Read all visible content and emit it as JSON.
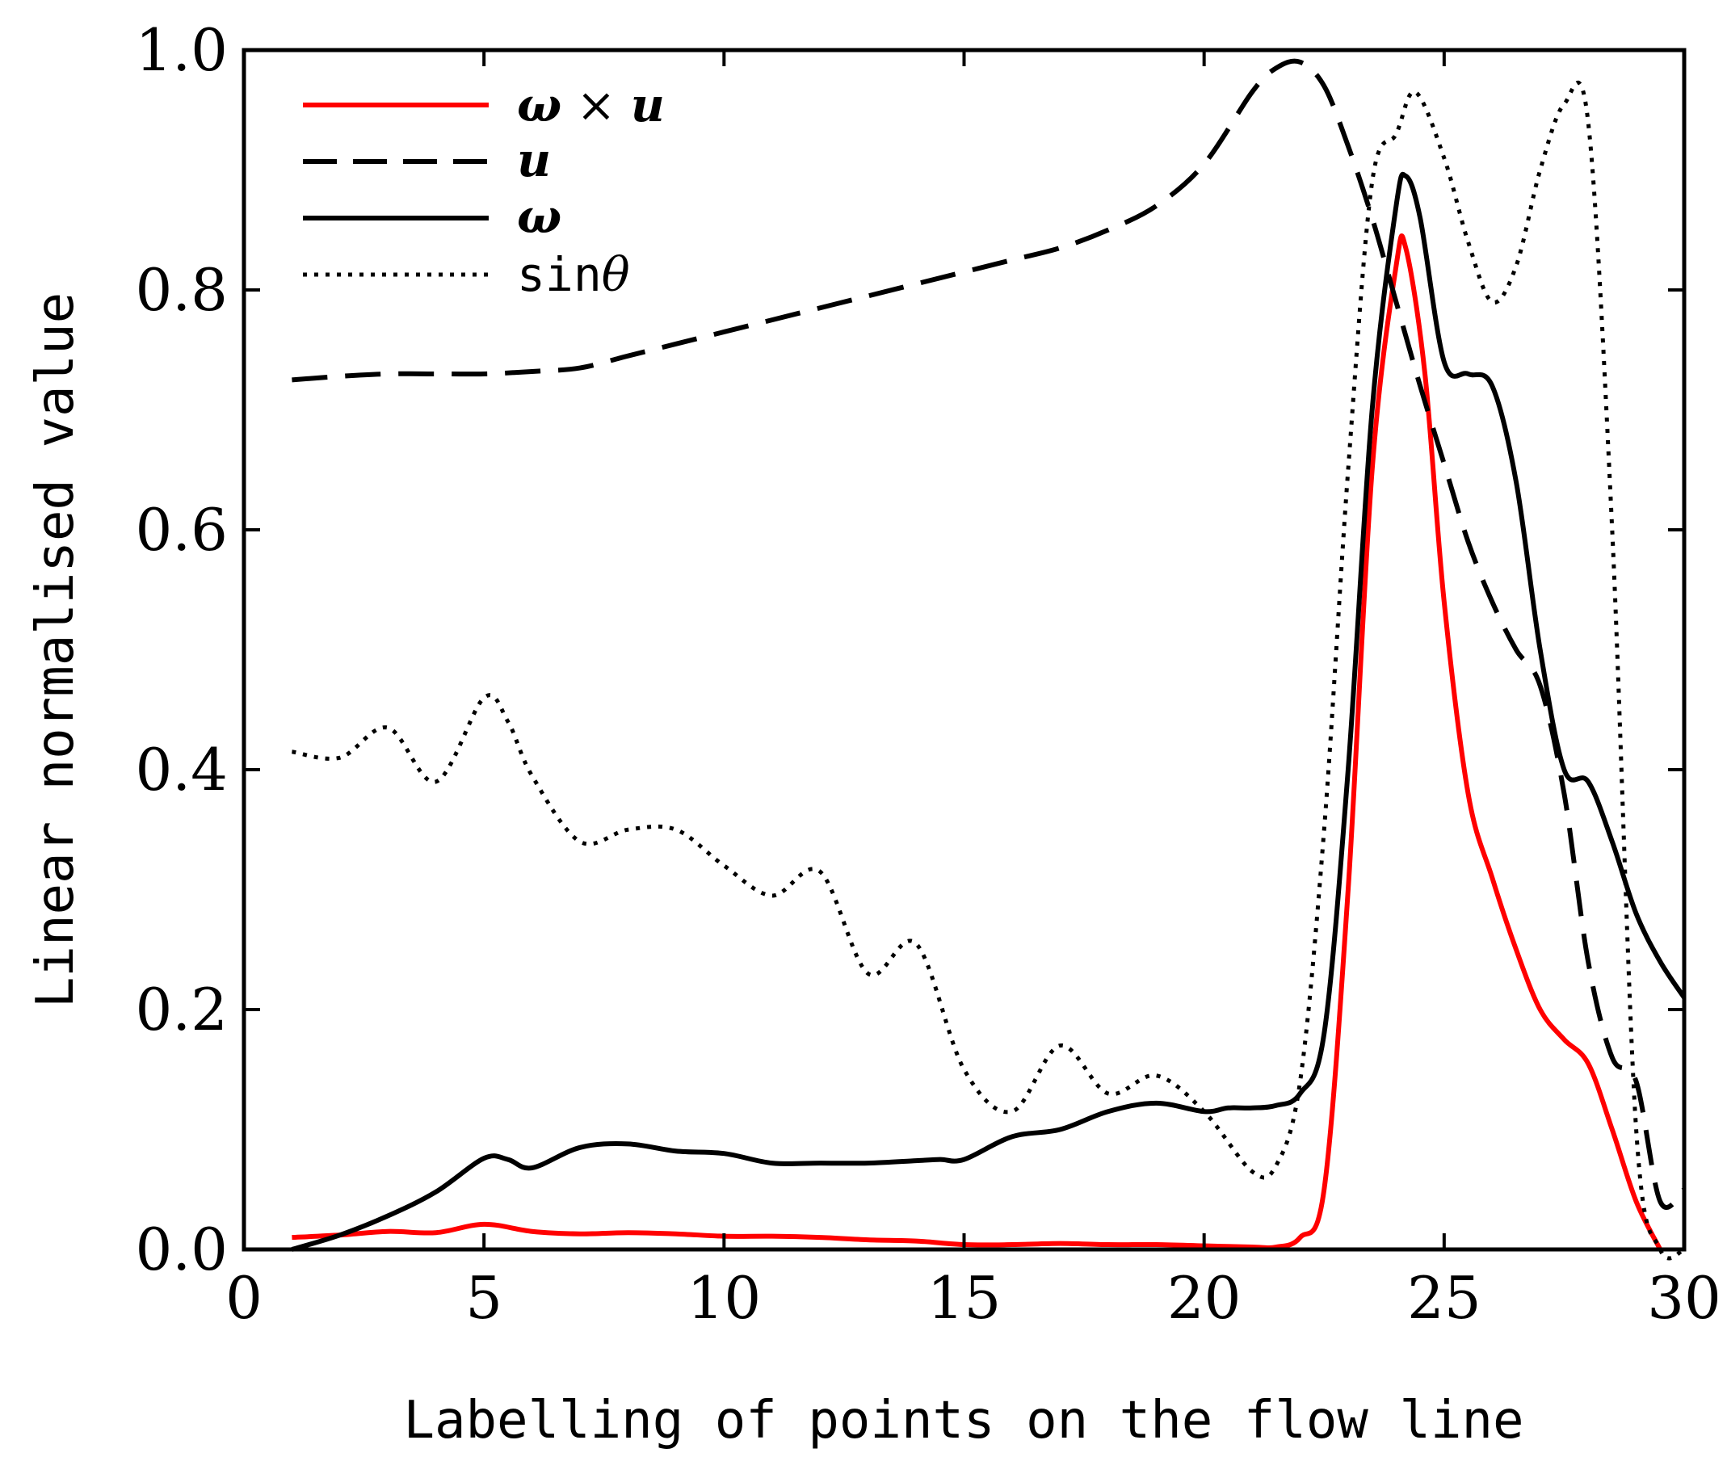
{
  "chart_data": {
    "type": "line",
    "title": "",
    "xlabel": "Labelling of points on the flow line",
    "ylabel": "Linear normalised value",
    "xlim": [
      0,
      30
    ],
    "ylim": [
      0.0,
      1.0
    ],
    "xticks": [
      0,
      5,
      10,
      15,
      20,
      25,
      30
    ],
    "xtick_labels": [
      "0",
      "5",
      "10",
      "15",
      "20",
      "25",
      "30"
    ],
    "yticks": [
      0.0,
      0.2,
      0.4,
      0.6,
      0.8,
      1.0
    ],
    "ytick_labels": [
      "0.0",
      "0.2",
      "0.4",
      "0.6",
      "0.8",
      "1.0"
    ],
    "grid": false,
    "legend_position": "top-left",
    "series": [
      {
        "name": "ω × u",
        "legend_parts": [
          "ω",
          " × ",
          "u"
        ],
        "color": "#ff0000",
        "dash": "solid",
        "x": [
          1,
          2,
          3,
          4,
          5,
          6,
          7,
          8,
          9,
          10,
          11,
          12,
          13,
          14,
          15,
          16,
          17,
          18,
          19,
          20,
          21,
          21.5,
          22,
          22.5,
          23,
          23.5,
          24,
          24.2,
          24.6,
          25,
          25.5,
          26,
          26.5,
          27,
          27.5,
          28,
          28.5,
          29,
          29.5
        ],
        "y": [
          0.01,
          0.012,
          0.015,
          0.014,
          0.021,
          0.015,
          0.013,
          0.014,
          0.013,
          0.011,
          0.011,
          0.01,
          0.008,
          0.007,
          0.004,
          0.004,
          0.005,
          0.004,
          0.004,
          0.003,
          0.002,
          0.002,
          0.01,
          0.05,
          0.3,
          0.65,
          0.82,
          0.835,
          0.73,
          0.54,
          0.38,
          0.31,
          0.25,
          0.2,
          0.175,
          0.155,
          0.1,
          0.04,
          0.0
        ]
      },
      {
        "name": "u",
        "legend_parts": [
          "u"
        ],
        "color": "#000000",
        "dash": "dashed",
        "x": [
          1,
          2,
          3,
          4,
          5,
          6,
          7,
          8,
          9,
          10,
          11,
          12,
          13,
          14,
          15,
          16,
          17,
          18,
          19,
          20,
          21,
          21.5,
          22,
          22.5,
          23,
          23.5,
          24,
          24.5,
          25,
          25.5,
          26,
          26.5,
          27,
          27.5,
          28,
          28.5,
          29,
          29.5,
          30
        ],
        "y": [
          0.725,
          0.728,
          0.73,
          0.73,
          0.73,
          0.732,
          0.735,
          0.745,
          0.755,
          0.765,
          0.775,
          0.785,
          0.795,
          0.805,
          0.815,
          0.825,
          0.835,
          0.85,
          0.87,
          0.905,
          0.965,
          0.985,
          0.99,
          0.97,
          0.92,
          0.86,
          0.79,
          0.72,
          0.655,
          0.59,
          0.54,
          0.5,
          0.47,
          0.38,
          0.24,
          0.16,
          0.14,
          0.04,
          0.05
        ]
      },
      {
        "name": "ω",
        "legend_parts": [
          "ω"
        ],
        "color": "#000000",
        "dash": "solid",
        "x": [
          1,
          2,
          3,
          4,
          5,
          5.5,
          6,
          7,
          8,
          9,
          10,
          11,
          12,
          13,
          14,
          14.5,
          15,
          16,
          17,
          18,
          19,
          20,
          20.5,
          21,
          21.5,
          22,
          22.5,
          23,
          23.5,
          24,
          24.2,
          24.5,
          25,
          25.5,
          26,
          26.5,
          27,
          27.5,
          28,
          28.5,
          29,
          29.5,
          30
        ],
        "y": [
          0.0,
          0.012,
          0.028,
          0.048,
          0.076,
          0.075,
          0.068,
          0.085,
          0.088,
          0.082,
          0.08,
          0.072,
          0.072,
          0.072,
          0.074,
          0.075,
          0.075,
          0.094,
          0.1,
          0.115,
          0.122,
          0.115,
          0.118,
          0.118,
          0.12,
          0.13,
          0.18,
          0.4,
          0.7,
          0.87,
          0.895,
          0.86,
          0.74,
          0.73,
          0.72,
          0.64,
          0.5,
          0.4,
          0.39,
          0.34,
          0.28,
          0.24,
          0.21
        ]
      },
      {
        "name": "sinθ",
        "legend_parts": [
          "sin",
          "θ"
        ],
        "color": "#000000",
        "dash": "dotted",
        "x": [
          1,
          2,
          3,
          4,
          5,
          5.5,
          6,
          7,
          8,
          9,
          10,
          11,
          12,
          13,
          14,
          15,
          16,
          17,
          18,
          19,
          20,
          21,
          21.5,
          22,
          22.5,
          23,
          23.5,
          24,
          24.4,
          25,
          25.5,
          26,
          26.5,
          27,
          27.5,
          28,
          28.5,
          29,
          29.5,
          30
        ],
        "y": [
          0.415,
          0.41,
          0.435,
          0.39,
          0.46,
          0.44,
          0.395,
          0.34,
          0.35,
          0.35,
          0.32,
          0.295,
          0.315,
          0.23,
          0.255,
          0.15,
          0.115,
          0.17,
          0.13,
          0.145,
          0.115,
          0.065,
          0.07,
          0.14,
          0.35,
          0.65,
          0.89,
          0.93,
          0.965,
          0.91,
          0.84,
          0.79,
          0.82,
          0.9,
          0.955,
          0.94,
          0.6,
          0.1,
          0.0,
          0.0
        ]
      }
    ]
  }
}
